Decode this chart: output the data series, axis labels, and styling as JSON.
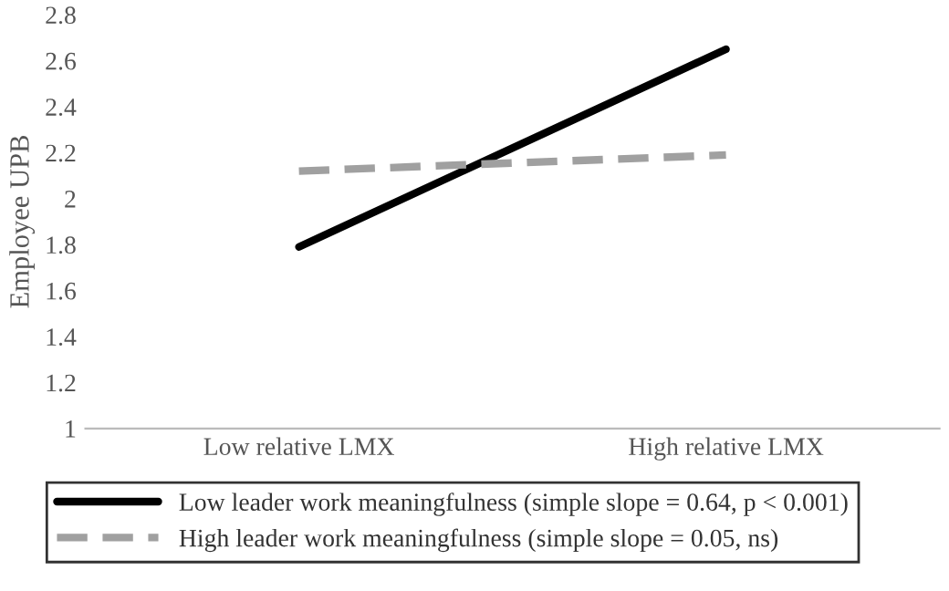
{
  "chart_data": {
    "type": "line",
    "ylabel": "Employee UPB",
    "categories": [
      "Low relative LMX",
      "High relative LMX"
    ],
    "series": [
      {
        "name": "Low leader work meaningfulness (simple slope = 0.64, p < 0.001)",
        "color": "#000000",
        "line_style": "solid",
        "values": [
          1.79,
          2.65
        ]
      },
      {
        "name": "High leader work meaningfulness (simple slope = 0.05, ns)",
        "color": "#a0a0a0",
        "line_style": "dashed",
        "values": [
          2.12,
          2.19
        ]
      }
    ],
    "ylim": [
      1,
      2.8
    ],
    "yticks": [
      1,
      1.2,
      1.4,
      1.6,
      1.8,
      2,
      2.2,
      2.4,
      2.6,
      2.8
    ],
    "grid": false,
    "legend": "bottom",
    "marker": "none"
  }
}
